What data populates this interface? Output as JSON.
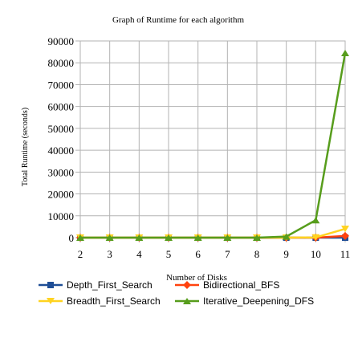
{
  "chart_data": {
    "type": "line",
    "title": "Graph of Runtime for each algorithm",
    "xlabel": "Number of Disks",
    "ylabel": "Total Runtime (seconds)",
    "x": [
      2,
      3,
      4,
      5,
      6,
      7,
      8,
      9,
      10,
      11
    ],
    "ylim": [
      0,
      90000
    ],
    "yticks": [
      0,
      10000,
      20000,
      30000,
      40000,
      50000,
      60000,
      70000,
      80000,
      90000
    ],
    "grid": true,
    "legend_position": "bottom",
    "series": [
      {
        "name": "Depth_First_Search",
        "color": "#1f4e96",
        "marker": "square",
        "values": [
          0,
          0,
          0,
          0,
          0,
          0,
          0,
          0,
          0,
          0
        ]
      },
      {
        "name": "Bidirectional_BFS",
        "color": "#ff420e",
        "marker": "diamond",
        "values": [
          0,
          0,
          0,
          0,
          0,
          0,
          0,
          0,
          0,
          800
        ]
      },
      {
        "name": "Breadth_First_Search",
        "color": "#ffd320",
        "marker": "triangle-down",
        "values": [
          0,
          0,
          0,
          0,
          0,
          0,
          0,
          0,
          100,
          4000
        ]
      },
      {
        "name": "Iterative_Deepening_DFS",
        "color": "#579d1c",
        "marker": "triangle-up",
        "values": [
          0,
          0,
          0,
          0,
          0,
          0,
          0,
          500,
          8000,
          84500
        ]
      }
    ]
  }
}
